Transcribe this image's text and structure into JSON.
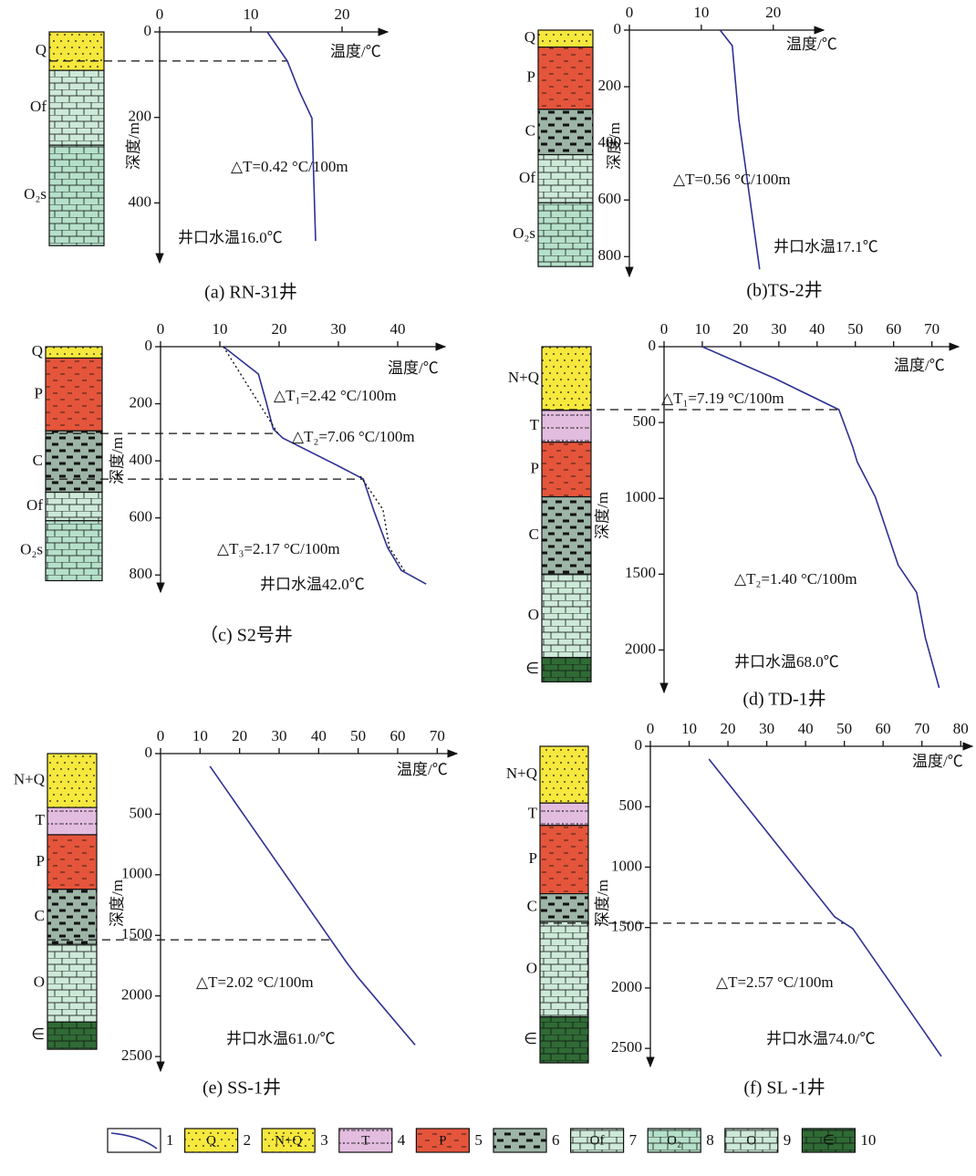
{
  "chart_data": [
    {
      "type": "line",
      "caption": "(a) RN-31井",
      "xlabel": "温度/℃",
      "ylabel": "深度/m",
      "xlim": [
        0,
        25
      ],
      "xticks": [
        0,
        10,
        20
      ],
      "ylim": [
        0,
        540
      ],
      "yticks": [
        0,
        200,
        400
      ],
      "series": [
        {
          "color": "#2e3192",
          "x": [
            11.8,
            14,
            15.3,
            16.7,
            17.1
          ],
          "values": [
            0,
            68,
            138,
            202,
            489
          ]
        }
      ],
      "boundaries": [
        68
      ],
      "strata": [
        {
          "label": "Q",
          "code": 2,
          "top": 0,
          "bottom": 90
        },
        {
          "label": "Of",
          "code": 7,
          "top": 90,
          "bottom": 265
        },
        {
          "label": "O₂s",
          "code": 8,
          "top": 265,
          "bottom": 500
        }
      ],
      "annotations": [
        {
          "text": "△T=0.42 °C/100m",
          "color": "#2e3fb0"
        },
        {
          "text": "井口水温16.0℃",
          "color": "#111111"
        }
      ]
    },
    {
      "type": "line",
      "caption": "(b)TS-2井",
      "xlabel": "温度/℃",
      "ylabel": "深度/m",
      "xlim": [
        0,
        27
      ],
      "xticks": [
        0,
        10,
        20
      ],
      "ylim": [
        0,
        870
      ],
      "yticks": [
        0,
        200,
        400,
        600,
        800
      ],
      "series": [
        {
          "color": "#2e3192",
          "x": [
            12.6,
            14.3,
            15.2,
            18.1
          ],
          "values": [
            0,
            55,
            313,
            845
          ]
        }
      ],
      "strata": [
        {
          "label": "Q",
          "code": 2,
          "top": 0,
          "bottom": 60
        },
        {
          "label": "P",
          "code": 5,
          "top": 60,
          "bottom": 280
        },
        {
          "label": "C",
          "code": 6,
          "top": 280,
          "bottom": 440
        },
        {
          "label": "Of",
          "code": 7,
          "top": 440,
          "bottom": 610
        },
        {
          "label": "O₂s",
          "code": 8,
          "top": 610,
          "bottom": 835
        }
      ],
      "annotations": [
        {
          "text": "△T=0.56 °C/100m",
          "color": "#2e3fb0"
        },
        {
          "text": "井口水温17.1℃",
          "color": "#111111"
        }
      ]
    },
    {
      "type": "line",
      "caption": "（c) S2号井",
      "xlabel": "温度/℃",
      "ylabel": "深度/m",
      "xlim": [
        0,
        48
      ],
      "xticks": [
        0,
        10,
        20,
        30,
        40
      ],
      "ylim": [
        0,
        860
      ],
      "yticks": [
        0,
        200,
        400,
        600,
        800
      ],
      "series": [
        {
          "color": "#2e3192",
          "x": [
            10.6,
            16.5,
            17.8,
            19,
            20.6,
            29.8,
            34.2,
            36,
            38.3,
            40.6,
            44.8
          ],
          "values": [
            0,
            96,
            192,
            288,
            320,
            416,
            464,
            576,
            704,
            784,
            832
          ]
        },
        {
          "color": "#111111",
          "dash": "dotted",
          "x": [
            10.6,
            19.8,
            null,
            33.7,
            37.5,
            38.6,
            41.4
          ],
          "values": [
            0,
            304,
            null,
            454,
            570,
            704,
            794
          ]
        }
      ],
      "boundaries": [
        304,
        464
      ],
      "strata": [
        {
          "label": "Q",
          "code": 2,
          "top": 0,
          "bottom": 40
        },
        {
          "label": "P",
          "code": 5,
          "top": 40,
          "bottom": 295
        },
        {
          "label": "C",
          "code": 6,
          "top": 295,
          "bottom": 510
        },
        {
          "label": "Of",
          "code": 7,
          "top": 510,
          "bottom": 610
        },
        {
          "label": "O₂s",
          "code": 8,
          "top": 610,
          "bottom": 820
        }
      ],
      "annotations": [
        {
          "text": "△T₁=2.42 °C/100m",
          "color": "#2e3fb0"
        },
        {
          "text": "△T₂=7.06 °C/100m",
          "color": "#2e3fb0"
        },
        {
          "text": "△T₃=2.17 °C/100m",
          "color": "#2e3fb0"
        },
        {
          "text": "井口水温42.0℃",
          "color": "#111111"
        }
      ]
    },
    {
      "type": "line",
      "caption": "(d) TD-1井",
      "xlabel": "温度/℃",
      "ylabel": "深度/m",
      "xlim": [
        0,
        77
      ],
      "xticks": [
        0,
        10,
        20,
        30,
        40,
        50,
        60,
        70
      ],
      "ylim": [
        0,
        2280
      ],
      "yticks": [
        0,
        500,
        1000,
        1500,
        2000
      ],
      "series": [
        {
          "color": "#2e3192",
          "x": [
            10,
            29,
            45.7,
            49.3,
            50.5,
            55.2,
            58,
            61.2,
            66,
            68.3,
            71.9
          ],
          "values": [
            0,
            210,
            415,
            660,
            760,
            990,
            1200,
            1440,
            1620,
            1920,
            2250
          ]
        }
      ],
      "boundaries": [
        415
      ],
      "strata": [
        {
          "label": "N+Q",
          "code": 3,
          "top": 0,
          "bottom": 420
        },
        {
          "label": "T",
          "code": 4,
          "top": 420,
          "bottom": 630
        },
        {
          "label": "P",
          "code": 5,
          "top": 630,
          "bottom": 990
        },
        {
          "label": "C",
          "code": 6,
          "top": 990,
          "bottom": 1500
        },
        {
          "label": "O",
          "code": 9,
          "top": 1500,
          "bottom": 2050
        },
        {
          "label": "∈",
          "code": 10,
          "top": 2050,
          "bottom": 2210
        }
      ],
      "annotations": [
        {
          "text": "△T₁=7.19 °C/100m",
          "color": "#2e3fb0"
        },
        {
          "text": "△T₂=1.40 °C/100m",
          "color": "#2e3fb0"
        },
        {
          "text": "井口水温68.0℃",
          "color": "#111111"
        }
      ]
    },
    {
      "type": "line",
      "caption": "(e)  SS-1井",
      "xlabel": "温度/℃",
      "ylabel": "深度/m",
      "xlim": [
        0,
        75
      ],
      "xticks": [
        0,
        10,
        20,
        30,
        40,
        50,
        60,
        70
      ],
      "ylim": [
        0,
        2620
      ],
      "yticks": [
        0,
        500,
        1000,
        1500,
        2000,
        2500
      ],
      "series": [
        {
          "color": "#2e3192",
          "x": [
            12.5,
            47.1,
            50,
            64.4
          ],
          "values": [
            105,
            1725,
            1850,
            2405
          ]
        }
      ],
      "boundaries": [
        1537
      ],
      "strata": [
        {
          "label": "N+Q",
          "code": 3,
          "top": 0,
          "bottom": 445
        },
        {
          "label": "T",
          "code": 4,
          "top": 445,
          "bottom": 670
        },
        {
          "label": "P",
          "code": 5,
          "top": 670,
          "bottom": 1120
        },
        {
          "label": "C",
          "code": 6,
          "top": 1120,
          "bottom": 1575
        },
        {
          "label": "O",
          "code": 9,
          "top": 1575,
          "bottom": 2215
        },
        {
          "label": "∈",
          "code": 10,
          "top": 2215,
          "bottom": 2440
        }
      ],
      "annotations": [
        {
          "text": "△T=2.02 °C/100m",
          "color": "#2e3fb0"
        },
        {
          "text": "井口水温61.0/℃",
          "color": "#111111"
        }
      ]
    },
    {
      "type": "line",
      "caption": "(f)  SL -1井",
      "xlabel": "温度/℃",
      "ylabel": "深度/m",
      "xlim": [
        0,
        83
      ],
      "xticks": [
        0,
        10,
        20,
        30,
        40,
        50,
        60,
        70,
        80
      ],
      "ylim": [
        0,
        2650
      ],
      "yticks": [
        0,
        500,
        1000,
        1500,
        2000,
        2500
      ],
      "series": [
        {
          "color": "#2e3192",
          "x": [
            15.1,
            47.5,
            52.2,
            75
          ],
          "values": [
            106,
            1411,
            1509,
            2566
          ]
        }
      ],
      "boundaries": [
        1464
      ],
      "strata": [
        {
          "label": "N+Q",
          "code": 3,
          "top": 0,
          "bottom": 470
        },
        {
          "label": "T",
          "code": 4,
          "top": 470,
          "bottom": 655
        },
        {
          "label": "P",
          "code": 5,
          "top": 655,
          "bottom": 1220
        },
        {
          "label": "C",
          "code": 6,
          "top": 1220,
          "bottom": 1450
        },
        {
          "label": "O",
          "code": 9,
          "top": 1450,
          "bottom": 2240
        },
        {
          "label": "∈",
          "code": 10,
          "top": 2240,
          "bottom": 2620
        }
      ],
      "annotations": [
        {
          "text": "△T=2.57 °C/100m",
          "color": "#2e3fb0"
        },
        {
          "text": "井口水温74.0/℃",
          "color": "#111111"
        }
      ]
    }
  ],
  "legend": [
    {
      "number": 1,
      "color": "#2e3192"
    },
    {
      "number": 2,
      "symbol": "Q",
      "color": "#f6e83c"
    },
    {
      "number": 3,
      "symbol": "N+Q",
      "color": "#f6e83c"
    },
    {
      "number": 4,
      "symbol": "T",
      "color": "#e3bde0"
    },
    {
      "number": 5,
      "symbol": "P",
      "color": "#e5553b"
    },
    {
      "number": 6,
      "color": "#9db5a6"
    },
    {
      "number": 7,
      "symbol": "Of",
      "color": "#cde9d8"
    },
    {
      "number": 8,
      "symbol": "O₂",
      "color": "#b5e0c9"
    },
    {
      "number": 9,
      "symbol": "O",
      "color": "#cde9d8"
    },
    {
      "number": 10,
      "symbol": "∈",
      "color": "#2f6b35"
    }
  ]
}
